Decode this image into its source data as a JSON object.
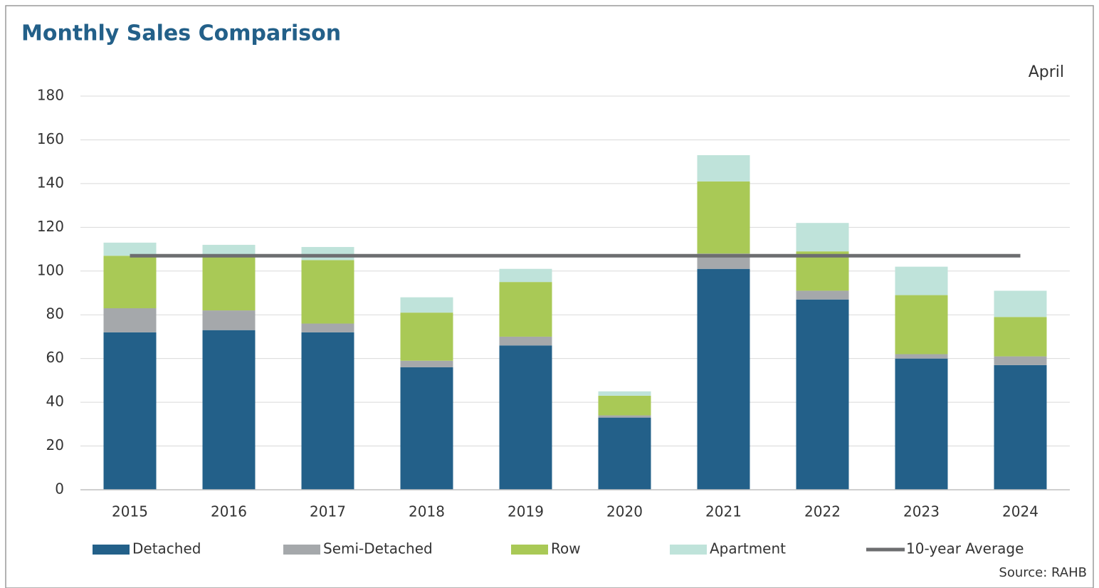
{
  "chart_data": {
    "type": "stacked_bar_line",
    "title": "Monthly Sales Comparison",
    "annotation": "April",
    "source": "Source: RAHB",
    "categories": [
      "2015",
      "2016",
      "2017",
      "2018",
      "2019",
      "2020",
      "2021",
      "2022",
      "2023",
      "2024"
    ],
    "series": [
      {
        "name": "Detached",
        "color": "#236089",
        "values": [
          72,
          73,
          72,
          56,
          66,
          33,
          101,
          87,
          60,
          57
        ]
      },
      {
        "name": "Semi-Detached",
        "color": "#a5a8ab",
        "values": [
          11,
          9,
          4,
          3,
          4,
          1,
          7,
          4,
          2,
          4
        ]
      },
      {
        "name": "Row",
        "color": "#a9c956",
        "values": [
          24,
          25,
          29,
          22,
          25,
          9,
          33,
          18,
          27,
          18
        ]
      },
      {
        "name": "Apartment",
        "color": "#bfe3da",
        "values": [
          6,
          5,
          6,
          7,
          6,
          2,
          12,
          13,
          13,
          12
        ]
      },
      {
        "name": "10-year Average",
        "color": "#6d6e70",
        "type": "line",
        "values": [
          107,
          107,
          107,
          107,
          107,
          107,
          107,
          107,
          107,
          107
        ]
      }
    ],
    "ylim": [
      0,
      180
    ],
    "yticks": [
      0,
      20,
      40,
      60,
      80,
      100,
      120,
      140,
      160,
      180
    ],
    "grid": true
  }
}
